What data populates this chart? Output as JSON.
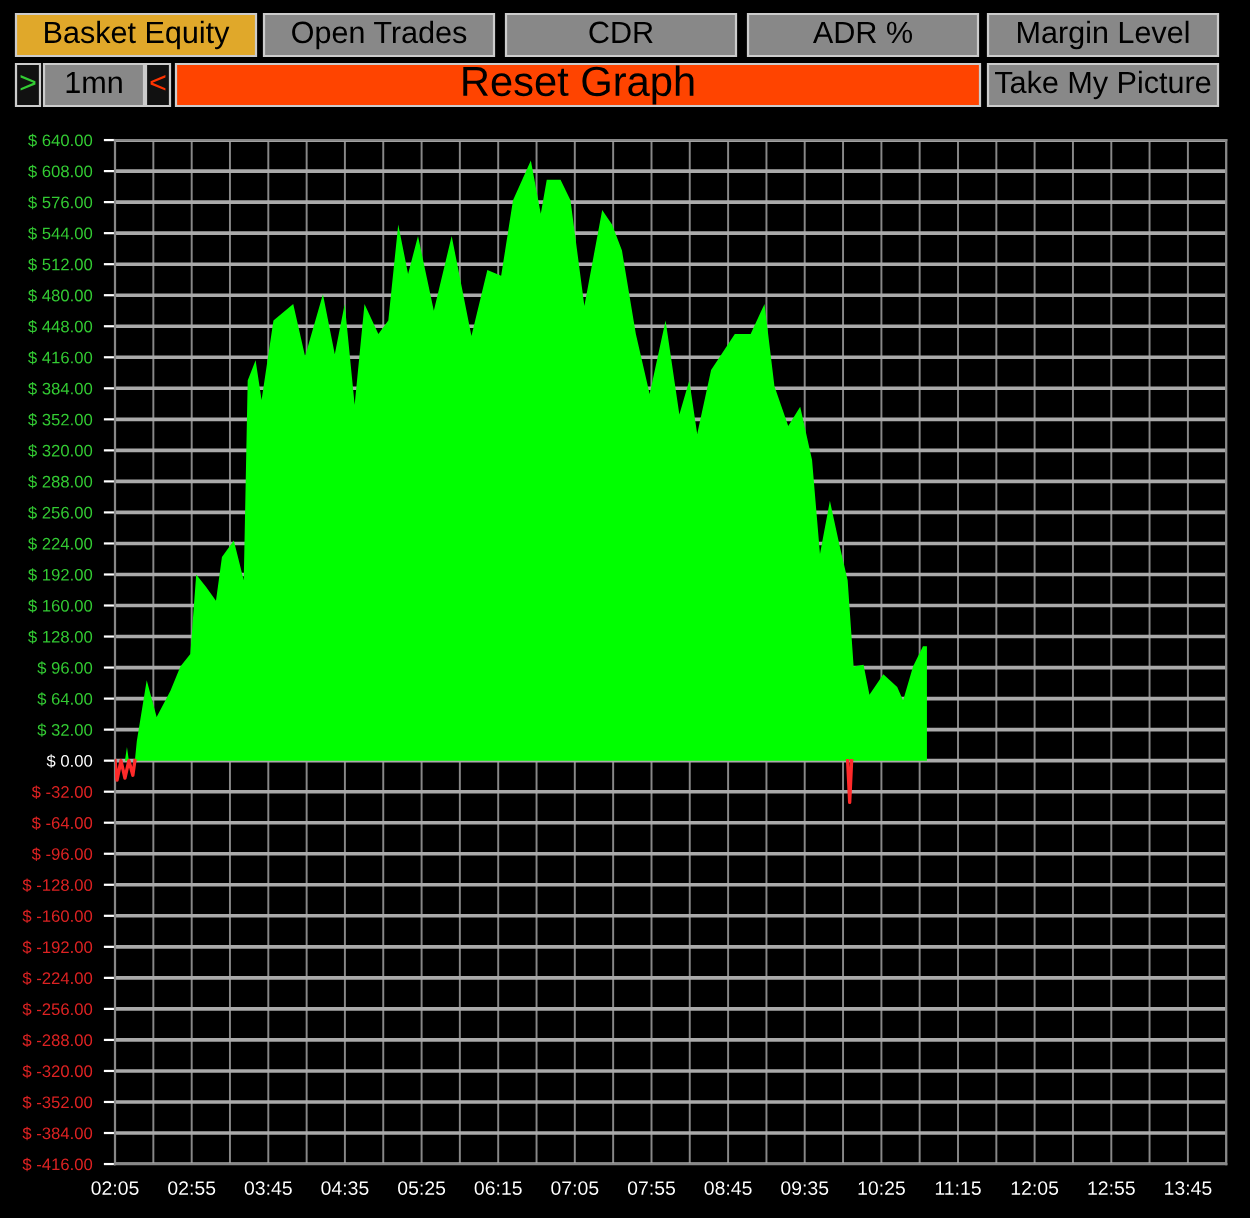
{
  "chart_data": {
    "type": "area",
    "annotations": [
      "Basket Equity",
      "Open Trades",
      "CDR",
      "ADR %",
      "Margin Level",
      ">",
      "1mn",
      "<",
      "Reset Graph",
      "Take My Picture"
    ],
    "xlim": [
      2.083,
      14.167
    ],
    "xticks": [
      {
        "value": 2.083,
        "label": "02:05"
      },
      {
        "value": 2.5,
        "label": null
      },
      {
        "value": 2.917,
        "label": "02:55"
      },
      {
        "value": 3.333,
        "label": null
      },
      {
        "value": 3.75,
        "label": "03:45"
      },
      {
        "value": 4.167,
        "label": null
      },
      {
        "value": 4.583,
        "label": "04:35"
      },
      {
        "value": 5.0,
        "label": null
      },
      {
        "value": 5.417,
        "label": "05:25"
      },
      {
        "value": 5.833,
        "label": null
      },
      {
        "value": 6.25,
        "label": "06:15"
      },
      {
        "value": 6.667,
        "label": null
      },
      {
        "value": 7.083,
        "label": "07:05"
      },
      {
        "value": 7.5,
        "label": null
      },
      {
        "value": 7.917,
        "label": "07:55"
      },
      {
        "value": 8.333,
        "label": null
      },
      {
        "value": 8.75,
        "label": "08:45"
      },
      {
        "value": 9.167,
        "label": null
      },
      {
        "value": 9.583,
        "label": "09:35"
      },
      {
        "value": 10.0,
        "label": null
      },
      {
        "value": 10.417,
        "label": "10:25"
      },
      {
        "value": 10.833,
        "label": null
      },
      {
        "value": 11.25,
        "label": "11:15"
      },
      {
        "value": 11.667,
        "label": null
      },
      {
        "value": 12.083,
        "label": "12:05"
      },
      {
        "value": 12.5,
        "label": null
      },
      {
        "value": 12.917,
        "label": "12:55"
      },
      {
        "value": 13.333,
        "label": null
      },
      {
        "value": 13.75,
        "label": "13:45"
      },
      {
        "value": 14.167,
        "label": null
      }
    ],
    "ylim": [
      -416,
      640
    ],
    "yticks": [
      {
        "value": 640,
        "label": "$ 640.00"
      },
      {
        "value": 608,
        "label": "$ 608.00"
      },
      {
        "value": 576,
        "label": "$ 576.00"
      },
      {
        "value": 544,
        "label": "$ 544.00"
      },
      {
        "value": 512,
        "label": "$ 512.00"
      },
      {
        "value": 480,
        "label": "$ 480.00"
      },
      {
        "value": 448,
        "label": "$ 448.00"
      },
      {
        "value": 416,
        "label": "$ 416.00"
      },
      {
        "value": 384,
        "label": "$ 384.00"
      },
      {
        "value": 352,
        "label": "$ 352.00"
      },
      {
        "value": 320,
        "label": "$ 320.00"
      },
      {
        "value": 288,
        "label": "$ 288.00"
      },
      {
        "value": 256,
        "label": "$ 256.00"
      },
      {
        "value": 224,
        "label": "$ 224.00"
      },
      {
        "value": 192,
        "label": "$ 192.00"
      },
      {
        "value": 160,
        "label": "$ 160.00"
      },
      {
        "value": 128,
        "label": "$ 128.00"
      },
      {
        "value": 96,
        "label": "$ 96.00"
      },
      {
        "value": 64,
        "label": "$ 64.00"
      },
      {
        "value": 32,
        "label": "$ 32.00"
      },
      {
        "value": 0,
        "label": "$ 0.00"
      },
      {
        "value": -32,
        "label": "$ -32.00"
      },
      {
        "value": -64,
        "label": "$ -64.00"
      },
      {
        "value": -96,
        "label": "$ -96.00"
      },
      {
        "value": -128,
        "label": "$ -128.00"
      },
      {
        "value": -160,
        "label": "$ -160.00"
      },
      {
        "value": -192,
        "label": "$ -192.00"
      },
      {
        "value": -224,
        "label": "$ -224.00"
      },
      {
        "value": -256,
        "label": "$ -256.00"
      },
      {
        "value": -288,
        "label": "$ -288.00"
      },
      {
        "value": -320,
        "label": "$ -320.00"
      },
      {
        "value": -352,
        "label": "$ -352.00"
      },
      {
        "value": -384,
        "label": "$ -384.00"
      },
      {
        "value": -416,
        "label": "$ -416.00"
      }
    ],
    "grid": true,
    "series": [
      {
        "color": "#00ff00",
        "x": [
          2.191,
          2.213,
          2.234,
          2.299,
          2.32,
          2.428,
          2.536,
          2.686,
          2.794,
          2.902,
          2.966,
          3.074,
          3.181,
          3.246,
          3.375,
          3.483,
          3.526,
          3.612,
          3.677,
          3.806,
          4.021,
          4.15,
          4.344,
          4.473,
          4.581,
          4.689,
          4.796,
          4.947,
          5.055,
          5.163,
          5.27,
          5.378,
          5.55,
          5.744,
          5.959,
          6.132,
          6.282,
          6.411,
          6.605,
          6.713,
          6.778,
          6.928,
          7.036,
          7.187,
          7.381,
          7.488,
          7.596,
          7.747,
          7.897,
          8.07,
          8.22,
          8.328,
          8.414,
          8.565,
          8.823,
          8.995,
          9.146,
          9.254,
          9.404,
          9.534,
          9.663,
          9.749,
          9.857,
          9.964,
          10.05,
          10.115,
          10.223,
          10.287,
          10.438,
          10.589,
          10.653,
          10.761,
          10.869,
          10.912
        ],
        "values": [
          0,
          14,
          0,
          0,
          20,
          83,
          45,
          72,
          97,
          110,
          192,
          179,
          165,
          210,
          227,
          186,
          392,
          413,
          372,
          454,
          471,
          417,
          481,
          419,
          471,
          367,
          471,
          440,
          454,
          553,
          502,
          541,
          464,
          541,
          438,
          506,
          500,
          578,
          619,
          564,
          599,
          599,
          578,
          469,
          568,
          553,
          526,
          440,
          378,
          454,
          357,
          392,
          337,
          403,
          440,
          440,
          471,
          386,
          345,
          365,
          310,
          213,
          268,
          221,
          186,
          97,
          99,
          68,
          89,
          76,
          62,
          97,
          118,
          118
        ]
      },
      {
        "type": "line",
        "color": "#ff2a2a",
        "x": [
          2.083,
          2.105,
          2.148,
          2.191,
          2.234,
          2.277,
          2.299,
          2.31,
          10.05,
          10.072,
          10.093
        ],
        "values": [
          0,
          -20,
          0,
          -18,
          0,
          -15,
          0,
          null,
          0,
          -43,
          0
        ]
      }
    ]
  }
}
